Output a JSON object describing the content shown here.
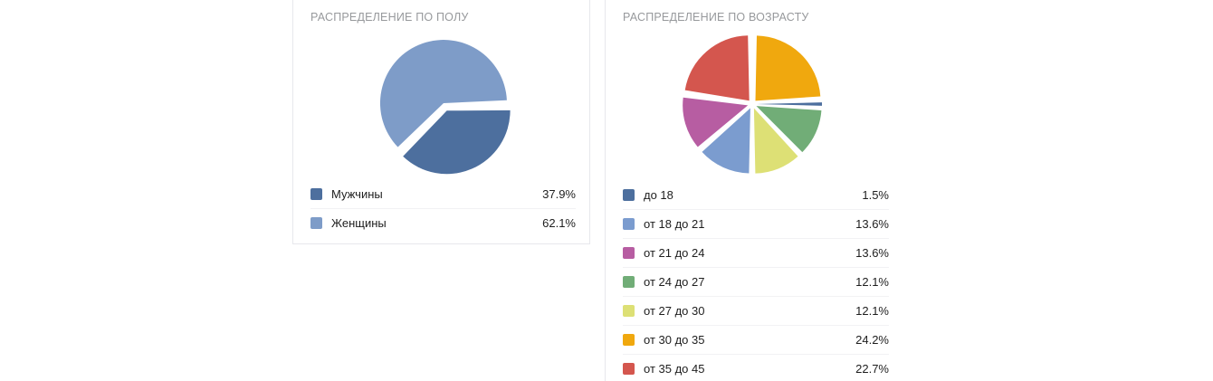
{
  "panels": [
    {
      "title": "РАСПРЕДЕЛЕНИЕ ПО ПОЛУ",
      "legend": [
        {
          "label": "Мужчины",
          "percent": "37.9%",
          "color": "#4d6f9e"
        },
        {
          "label": "Женщины",
          "percent": "62.1%",
          "color": "#7e9cc8"
        }
      ]
    },
    {
      "title": "РАСПРЕДЕЛЕНИЕ ПО ВОЗРАСТУ",
      "legend": [
        {
          "label": "до 18",
          "percent": "1.5%",
          "color": "#4d6f9e"
        },
        {
          "label": "от 18 до 21",
          "percent": "13.6%",
          "color": "#7b9ccf"
        },
        {
          "label": "от 21 до 24",
          "percent": "13.6%",
          "color": "#b75da2"
        },
        {
          "label": "от 24 до 27",
          "percent": "12.1%",
          "color": "#71ad77"
        },
        {
          "label": "от 27 до 30",
          "percent": "12.1%",
          "color": "#dde075"
        },
        {
          "label": "от 30 до 35",
          "percent": "24.2%",
          "color": "#f0a80e"
        },
        {
          "label": "от 35 до 45",
          "percent": "22.7%",
          "color": "#d4564e"
        }
      ]
    }
  ],
  "chart_data": [
    {
      "type": "pie",
      "title": "РАСПРЕДЕЛЕНИЕ ПО ПОЛУ",
      "labels": [
        "Мужчины",
        "Женщины"
      ],
      "values": [
        37.9,
        62.1
      ],
      "unit": "%",
      "colors": [
        "#4d6f9e",
        "#7e9cc8"
      ],
      "start_angle": 88.5,
      "draw_order": [
        0,
        1
      ],
      "explode": [
        9,
        0
      ],
      "legend_position": "bottom"
    },
    {
      "type": "pie",
      "title": "РАСПРЕДЕЛЕНИЕ ПО ВОЗРАСТУ",
      "labels": [
        "до 18",
        "от 18 до 21",
        "от 21 до 24",
        "от 24 до 27",
        "от 27 до 30",
        "от 30 до 35",
        "от 35 до 45"
      ],
      "values": [
        1.5,
        13.6,
        13.6,
        12.1,
        12.1,
        24.2,
        22.7
      ],
      "unit": "%",
      "colors": [
        "#4d6f9e",
        "#7b9ccf",
        "#b75da2",
        "#71ad77",
        "#dde075",
        "#f0a80e",
        "#d4564e"
      ],
      "start_angle": 0,
      "draw_order": [
        5,
        0,
        3,
        4,
        1,
        2,
        6
      ],
      "explode": [
        5,
        5,
        5,
        5,
        5,
        5,
        5
      ],
      "legend_position": "bottom"
    }
  ]
}
